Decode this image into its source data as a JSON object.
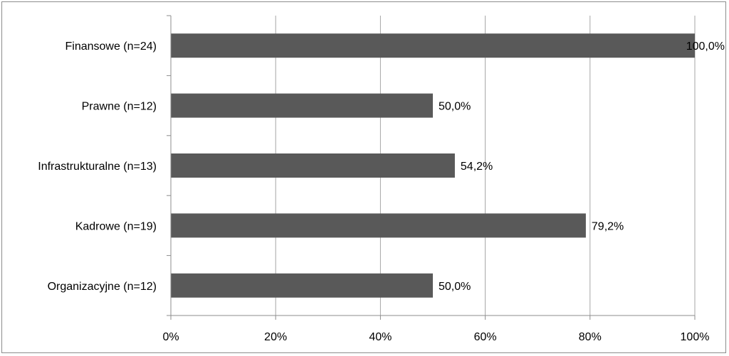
{
  "chart_data": {
    "type": "bar",
    "orientation": "horizontal",
    "title": "",
    "xlabel": "",
    "ylabel": "",
    "categories": [
      "Finansowe (n=24)",
      "Prawne (n=12)",
      "Infrastrukturalne (n=13)",
      "Kadrowe (n=19)",
      "Organizacyjne (n=12)"
    ],
    "values": [
      100.0,
      50.0,
      54.2,
      79.2,
      50.0
    ],
    "value_labels": [
      "100,0%",
      "50,0%",
      "54,2%",
      "79,2%",
      "50,0%"
    ],
    "xlim": [
      0,
      100
    ],
    "x_ticks": [
      0,
      20,
      40,
      60,
      80,
      100
    ],
    "x_tick_labels": [
      "0%",
      "20%",
      "40%",
      "60%",
      "80%",
      "100%"
    ],
    "grid": true,
    "legend": "none",
    "colors": {
      "bar": "#595959",
      "grid": "#a6a6a6",
      "axis": "#8c8c8c",
      "frame": "#8c8c8c"
    }
  }
}
